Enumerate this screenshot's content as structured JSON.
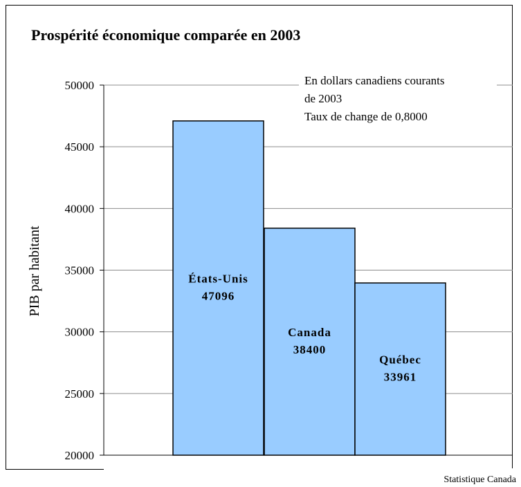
{
  "source": "Statistique Canada",
  "chart_data": {
    "type": "bar",
    "title": "Prospérité économique comparée en 2003",
    "ylabel": "PIB par habitant",
    "xlabel": "",
    "ylim": [
      20000,
      50000
    ],
    "yticks": [
      "50000",
      "45000",
      "40000",
      "35000",
      "30000",
      "25000",
      "20000"
    ],
    "categories": [
      "États-Unis",
      "Canada",
      "Québec"
    ],
    "values": [
      47096,
      38400,
      33961
    ],
    "data_labels": [
      "47096",
      "38400",
      "33961"
    ],
    "annotation": [
      "En dollars canadiens courants",
      "de 2003",
      "Taux de change de 0,8000"
    ],
    "bar_color": "#99ccff",
    "grid": true
  }
}
